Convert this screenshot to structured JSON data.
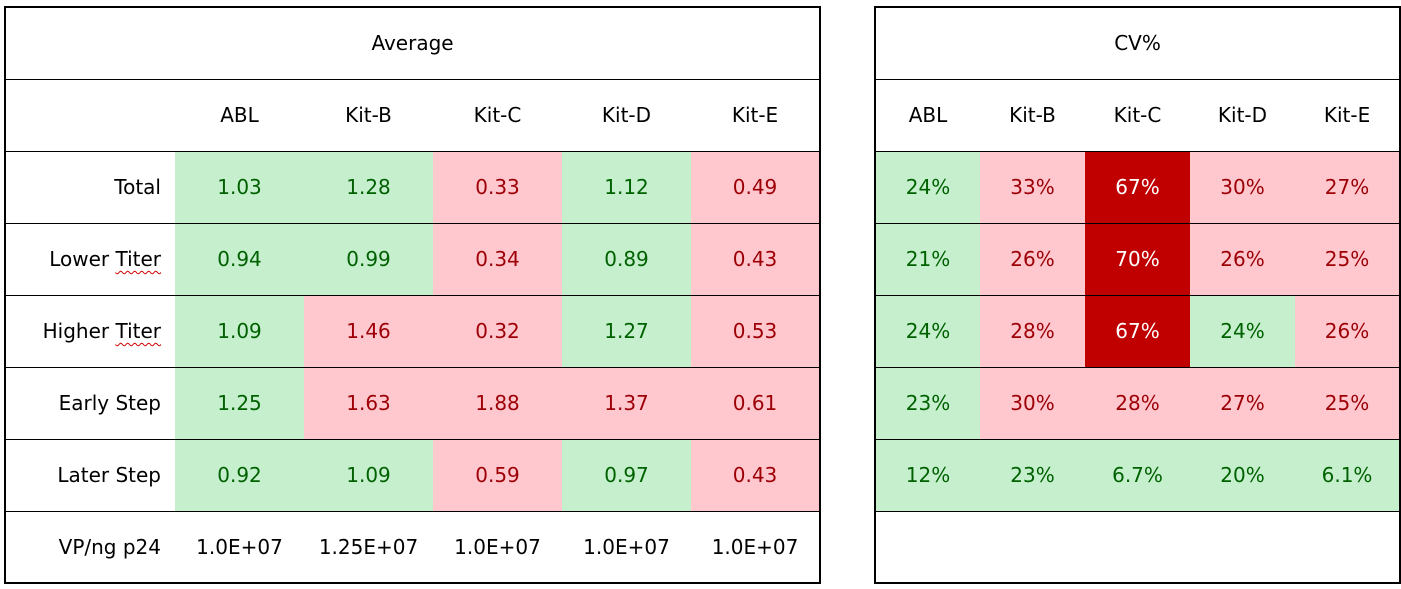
{
  "average": {
    "title": "Average",
    "columns": [
      "ABL",
      "Kit-B",
      "Kit-C",
      "Kit-D",
      "Kit-E"
    ],
    "rows": [
      {
        "label": "Total",
        "values": [
          "1.03",
          "1.28",
          "0.33",
          "1.12",
          "0.49"
        ],
        "status": [
          "good",
          "good",
          "bad",
          "good",
          "bad"
        ]
      },
      {
        "label_prefix": "Lower ",
        "label_flag": "Titer",
        "values": [
          "0.94",
          "0.99",
          "0.34",
          "0.89",
          "0.43"
        ],
        "status": [
          "good",
          "good",
          "bad",
          "good",
          "bad"
        ]
      },
      {
        "label_prefix": "Higher ",
        "label_flag": "Titer",
        "values": [
          "1.09",
          "1.46",
          "0.32",
          "1.27",
          "0.53"
        ],
        "status": [
          "good",
          "bad",
          "bad",
          "good",
          "bad"
        ]
      },
      {
        "label": "Early Step",
        "values": [
          "1.25",
          "1.63",
          "1.88",
          "1.37",
          "0.61"
        ],
        "status": [
          "good",
          "bad",
          "bad",
          "bad",
          "bad"
        ]
      },
      {
        "label": "Later Step",
        "values": [
          "0.92",
          "1.09",
          "0.59",
          "0.97",
          "0.43"
        ],
        "status": [
          "good",
          "good",
          "bad",
          "good",
          "bad"
        ]
      }
    ],
    "footer": {
      "label": "VP/ng p24",
      "values": [
        "1.0E+07",
        "1.25E+07",
        "1.0E+07",
        "1.0E+07",
        "1.0E+07"
      ]
    }
  },
  "cv": {
    "title": "CV%",
    "columns": [
      "ABL",
      "Kit-B",
      "Kit-C",
      "Kit-D",
      "Kit-E"
    ],
    "rows": [
      {
        "values": [
          "24%",
          "33%",
          "67%",
          "30%",
          "27%"
        ],
        "status": [
          "good",
          "bad",
          "severe",
          "bad",
          "bad"
        ]
      },
      {
        "values": [
          "21%",
          "26%",
          "70%",
          "26%",
          "25%"
        ],
        "status": [
          "good",
          "bad",
          "severe",
          "bad",
          "bad"
        ]
      },
      {
        "values": [
          "24%",
          "28%",
          "67%",
          "24%",
          "26%"
        ],
        "status": [
          "good",
          "bad",
          "severe",
          "good",
          "bad"
        ]
      },
      {
        "values": [
          "23%",
          "30%",
          "28%",
          "27%",
          "25%"
        ],
        "status": [
          "good",
          "bad",
          "bad",
          "bad",
          "bad"
        ]
      },
      {
        "values": [
          "12%",
          "23%",
          "6.7%",
          "20%",
          "6.1%"
        ],
        "status": [
          "good",
          "good",
          "good",
          "good",
          "good"
        ]
      }
    ]
  },
  "colors": {
    "good_fill": "#c6efce",
    "good_text": "#006100",
    "bad_fill": "#ffc7ce",
    "bad_text": "#9c0006",
    "severe_fill": "#c00000",
    "severe_text": "#ffffff"
  }
}
